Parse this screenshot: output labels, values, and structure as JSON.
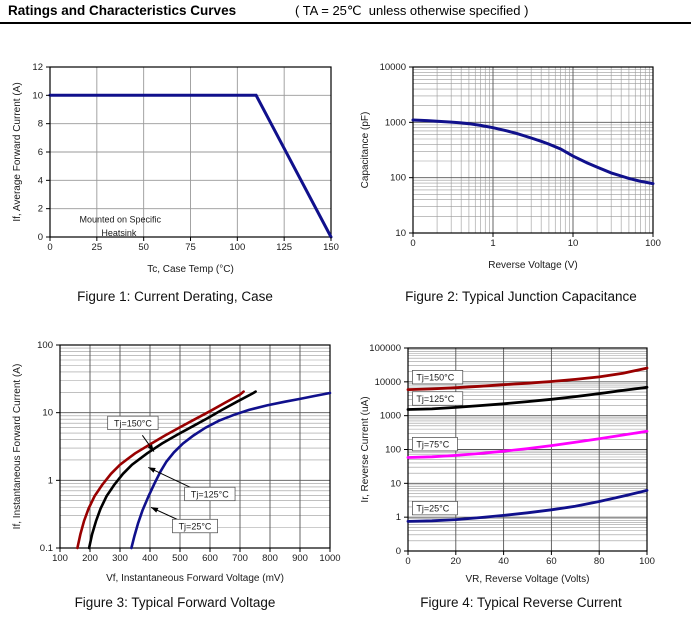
{
  "header": {
    "title": "Ratings and Characteristics Curves",
    "condition": "( TA = 25℃  unless otherwise specified )"
  },
  "colors": {
    "navy": "#10108c",
    "dark_red": "#990000",
    "magenta": "#ff00ff",
    "black": "#000000",
    "grid_major_gray": "#999999",
    "grid_major_dark": "#555555",
    "grid_minor": "#9a9a9a"
  },
  "chart_data": [
    {
      "id": "fig1",
      "type": "line",
      "caption": "Figure 1: Current Derating, Case",
      "xlabel": "Tc, Case Temp (°C)",
      "ylabel": "If, Average Forward Current (A)",
      "x_scale": "linear",
      "y_scale": "linear",
      "xlim": [
        0,
        150
      ],
      "ylim": [
        0,
        12
      ],
      "x_ticks": [
        0,
        25,
        50,
        75,
        100,
        125,
        150
      ],
      "y_ticks": [
        0,
        2,
        4,
        6,
        8,
        10,
        12
      ],
      "grid": {
        "major": "#999999",
        "minor": null
      },
      "series": [
        {
          "name": "derating",
          "color": "#10108c",
          "width": 3,
          "points": [
            [
              0,
              10
            ],
            [
              110,
              10
            ],
            [
              150,
              0
            ]
          ]
        }
      ],
      "annotations": [
        {
          "text": "Mounted on Specific",
          "fx": 0.25,
          "fy": 0.895,
          "anchor": "middle",
          "box": false
        },
        {
          "text": "Heatsink",
          "fx": 0.245,
          "fy": 0.975,
          "anchor": "middle",
          "box": false
        }
      ]
    },
    {
      "id": "fig2",
      "type": "line",
      "caption": "Figure 2: Typical Junction Capacitance",
      "xlabel": "Reverse Voltage (V)",
      "ylabel": "Capacitance (pF)",
      "x_scale": "log",
      "y_scale": "log",
      "xlim": [
        0.1,
        100
      ],
      "ylim": [
        10,
        10000
      ],
      "x_ticks": [
        0.1,
        1,
        10,
        100
      ],
      "x_tick_labels": [
        "0",
        "1",
        "10",
        "100"
      ],
      "y_ticks": [
        10,
        100,
        1000,
        10000
      ],
      "y_tick_labels": [
        "10",
        "100",
        "1000",
        "10000"
      ],
      "grid": {
        "major": "#555555",
        "minor": "#9a9a9a"
      },
      "series": [
        {
          "name": "junction-capacitance",
          "color": "#10108c",
          "width": 3,
          "points": [
            [
              0.1,
              1100
            ],
            [
              0.15,
              1075
            ],
            [
              0.2,
              1050
            ],
            [
              0.3,
              1010
            ],
            [
              0.4,
              975
            ],
            [
              0.5,
              945
            ],
            [
              0.7,
              880
            ],
            [
              1,
              800
            ],
            [
              1.5,
              700
            ],
            [
              2,
              625
            ],
            [
              3,
              520
            ],
            [
              4,
              455
            ],
            [
              5,
              405
            ],
            [
              7,
              330
            ],
            [
              10,
              245
            ],
            [
              15,
              185
            ],
            [
              20,
              155
            ],
            [
              30,
              122
            ],
            [
              40,
              107
            ],
            [
              50,
              97
            ],
            [
              70,
              86
            ],
            [
              100,
              78
            ]
          ]
        }
      ],
      "annotations": []
    },
    {
      "id": "fig3",
      "type": "line",
      "caption": "Figure 3: Typical Forward Voltage",
      "xlabel": "Vf, Instantaneous Forward  Voltage (mV)",
      "ylabel": "If, Instantaneous Forward Current (A)",
      "x_scale": "linear",
      "y_scale": "log",
      "xlim": [
        100,
        1000
      ],
      "ylim": [
        0.1,
        100
      ],
      "x_ticks": [
        100,
        200,
        300,
        400,
        500,
        600,
        700,
        800,
        900,
        1000
      ],
      "y_ticks": [
        0.1,
        1,
        10,
        100
      ],
      "y_tick_labels": [
        "0.1",
        "1",
        "10",
        "100"
      ],
      "grid": {
        "major": "#555555",
        "minor": "#9a9a9a"
      },
      "series": [
        {
          "name": "Tj=150°C",
          "color": "#990000",
          "width": 2.6,
          "points": [
            [
              158,
              0.1
            ],
            [
              168,
              0.16
            ],
            [
              180,
              0.25
            ],
            [
              195,
              0.38
            ],
            [
              215,
              0.58
            ],
            [
              240,
              0.85
            ],
            [
              270,
              1.25
            ],
            [
              300,
              1.7
            ],
            [
              350,
              2.5
            ],
            [
              400,
              3.4
            ],
            [
              450,
              4.6
            ],
            [
              500,
              6.1
            ],
            [
              550,
              8.0
            ],
            [
              600,
              10.5
            ],
            [
              650,
              14
            ],
            [
              700,
              18.5
            ],
            [
              712,
              20.5
            ]
          ]
        },
        {
          "name": "Tj=125°C",
          "color": "#000000",
          "width": 2.6,
          "points": [
            [
              197,
              0.1
            ],
            [
              207,
              0.16
            ],
            [
              220,
              0.25
            ],
            [
              235,
              0.38
            ],
            [
              255,
              0.58
            ],
            [
              280,
              0.85
            ],
            [
              310,
              1.25
            ],
            [
              340,
              1.7
            ],
            [
              390,
              2.5
            ],
            [
              440,
              3.5
            ],
            [
              490,
              4.7
            ],
            [
              540,
              6.2
            ],
            [
              590,
              8.2
            ],
            [
              640,
              11
            ],
            [
              690,
              14.5
            ],
            [
              740,
              19
            ],
            [
              752,
              20.5
            ]
          ]
        },
        {
          "name": "Tj=25°C",
          "color": "#10108c",
          "width": 2.6,
          "points": [
            [
              338,
              0.1
            ],
            [
              348,
              0.15
            ],
            [
              360,
              0.23
            ],
            [
              375,
              0.36
            ],
            [
              395,
              0.58
            ],
            [
              415,
              0.9
            ],
            [
              435,
              1.35
            ],
            [
              455,
              1.9
            ],
            [
              480,
              2.6
            ],
            [
              510,
              3.5
            ],
            [
              545,
              4.6
            ],
            [
              585,
              6.0
            ],
            [
              630,
              7.6
            ],
            [
              680,
              9.3
            ],
            [
              730,
              11
            ],
            [
              790,
              12.8
            ],
            [
              850,
              14.5
            ],
            [
              900,
              16
            ],
            [
              950,
              17.7
            ],
            [
              1000,
              19.5
            ]
          ]
        }
      ],
      "annotations": [
        {
          "text": "Tj=150°C",
          "fx": 0.27,
          "fy": 0.385,
          "anchor": "middle",
          "box": true,
          "arrow": {
            "x1": 0.305,
            "y1": 0.445,
            "x2": 0.348,
            "y2": 0.525
          }
        },
        {
          "text": "Tj=125°C",
          "fx": 0.555,
          "fy": 0.735,
          "anchor": "middle",
          "box": true,
          "arrow": {
            "x1": 0.5,
            "y1": 0.712,
            "x2": 0.327,
            "y2": 0.603
          }
        },
        {
          "text": "Tj=25°C",
          "fx": 0.5,
          "fy": 0.893,
          "anchor": "middle",
          "box": true,
          "arrow": {
            "x1": 0.452,
            "y1": 0.87,
            "x2": 0.337,
            "y2": 0.8
          }
        }
      ]
    },
    {
      "id": "fig4",
      "type": "line",
      "caption": "Figure 4: Typical Reverse Current",
      "xlabel": "VR, Reverse Voltage (Volts)",
      "ylabel": "Ir, Reverse Current (uA)",
      "x_scale": "linear",
      "y_scale": "log",
      "xlim": [
        0,
        100
      ],
      "ylim": [
        0.1,
        100000
      ],
      "x_ticks": [
        0,
        20,
        40,
        60,
        80,
        100
      ],
      "y_ticks": [
        0.1,
        1,
        10,
        100,
        1000,
        10000,
        100000
      ],
      "y_tick_labels": [
        "0",
        "1",
        "10",
        "100",
        "1000",
        "10000",
        "100000"
      ],
      "grid": {
        "major": "#555555",
        "minor": "#9a9a9a"
      },
      "series": [
        {
          "name": "Tj=150°C",
          "color": "#990000",
          "width": 2.8,
          "points": [
            [
              0,
              5900
            ],
            [
              10,
              6200
            ],
            [
              20,
              6700
            ],
            [
              30,
              7400
            ],
            [
              40,
              8200
            ],
            [
              50,
              9100
            ],
            [
              60,
              10200
            ],
            [
              70,
              11800
            ],
            [
              80,
              14000
            ],
            [
              90,
              18000
            ],
            [
              100,
              25500
            ]
          ]
        },
        {
          "name": "Tj=125°C",
          "color": "#000000",
          "width": 2.8,
          "points": [
            [
              0,
              1520
            ],
            [
              10,
              1580
            ],
            [
              20,
              1750
            ],
            [
              30,
              1980
            ],
            [
              40,
              2250
            ],
            [
              50,
              2600
            ],
            [
              60,
              3050
            ],
            [
              70,
              3650
            ],
            [
              80,
              4500
            ],
            [
              90,
              5600
            ],
            [
              100,
              6900
            ]
          ]
        },
        {
          "name": "Tj=75°C",
          "color": "#ff00ff",
          "width": 2.8,
          "points": [
            [
              0,
              58
            ],
            [
              10,
              61
            ],
            [
              20,
              67
            ],
            [
              30,
              76
            ],
            [
              40,
              89
            ],
            [
              50,
              106
            ],
            [
              60,
              130
            ],
            [
              70,
              163
            ],
            [
              80,
              208
            ],
            [
              90,
              268
            ],
            [
              100,
              345
            ]
          ]
        },
        {
          "name": "Tj=25°C",
          "color": "#10108c",
          "width": 2.8,
          "points": [
            [
              0,
              0.75
            ],
            [
              10,
              0.78
            ],
            [
              20,
              0.85
            ],
            [
              30,
              0.97
            ],
            [
              40,
              1.13
            ],
            [
              50,
              1.35
            ],
            [
              60,
              1.65
            ],
            [
              70,
              2.1
            ],
            [
              80,
              2.9
            ],
            [
              90,
              4.2
            ],
            [
              100,
              6.2
            ]
          ]
        }
      ],
      "annotations": [
        {
          "text": "Tj=150°C",
          "fx": 0.035,
          "fy": 0.145,
          "anchor": "start",
          "box": true
        },
        {
          "text": "Tj=125°C",
          "fx": 0.035,
          "fy": 0.25,
          "anchor": "start",
          "box": true
        },
        {
          "text": "Tj=75°C",
          "fx": 0.035,
          "fy": 0.475,
          "anchor": "start",
          "box": true
        },
        {
          "text": "Tj=25°C",
          "fx": 0.035,
          "fy": 0.79,
          "anchor": "start",
          "box": true
        }
      ]
    }
  ]
}
